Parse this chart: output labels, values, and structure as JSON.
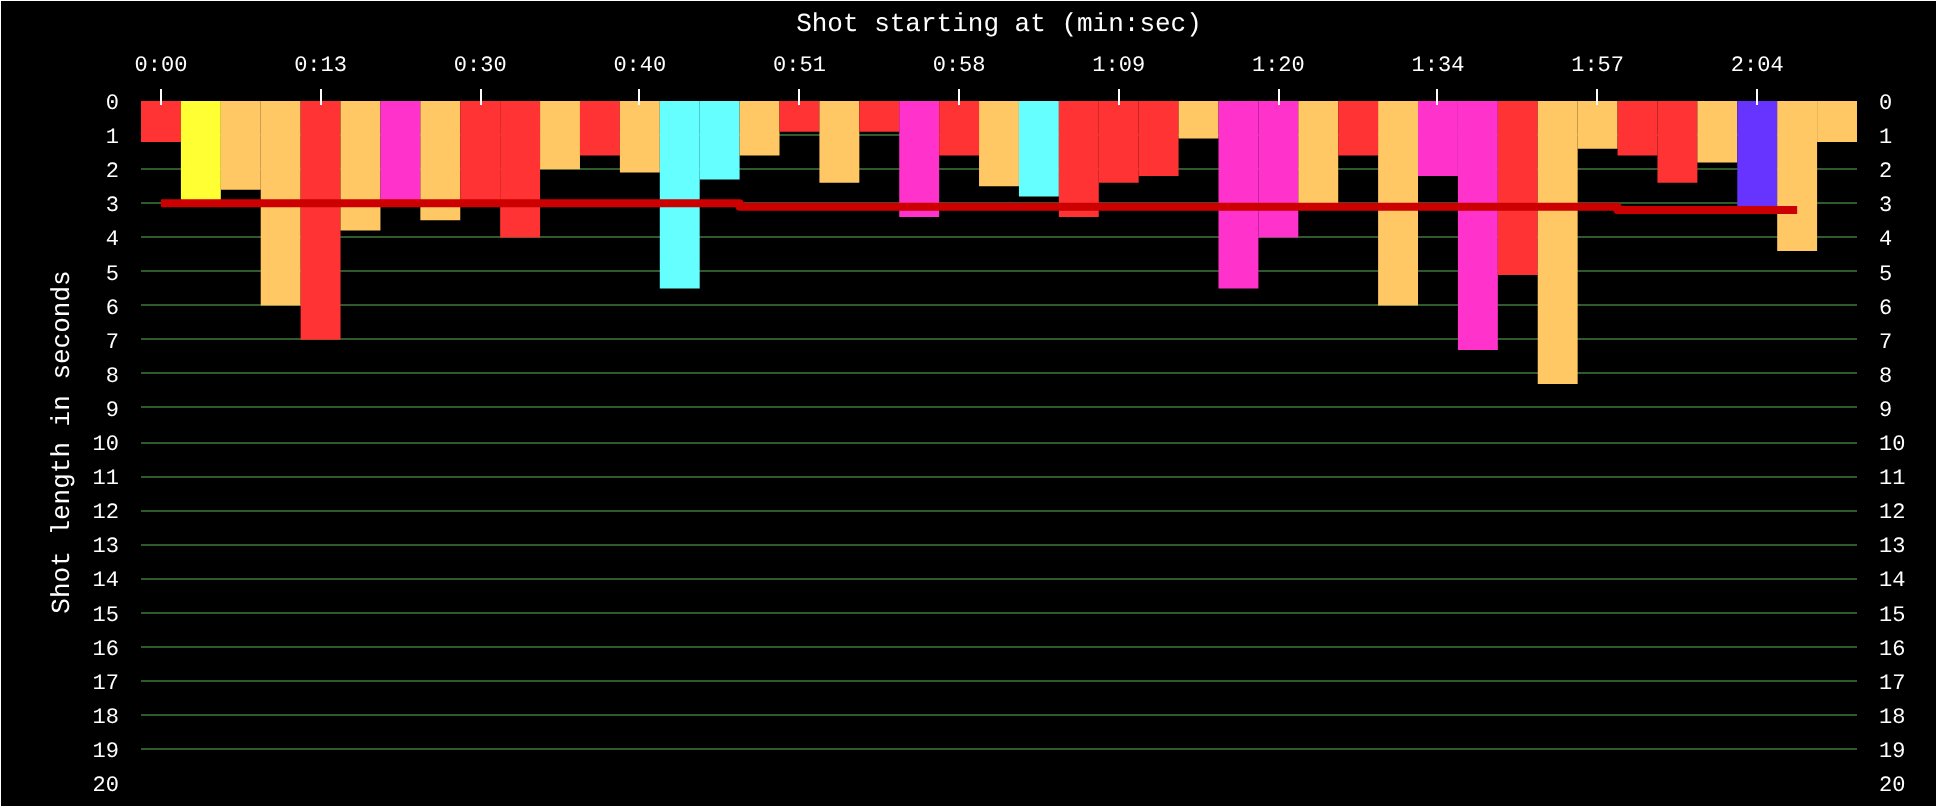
{
  "chart_data": {
    "type": "bar",
    "xlabel": "Shot starting at (min:sec)",
    "ylabel": "Shot length in seconds",
    "categories": [
      "0:00",
      null,
      null,
      null,
      "0:13",
      null,
      null,
      null,
      "0:30",
      null,
      null,
      null,
      "0:40",
      null,
      null,
      null,
      "0:51",
      null,
      null,
      null,
      "0:58",
      null,
      null,
      null,
      "1:09",
      null,
      null,
      null,
      "1:20",
      null,
      null,
      null,
      "1:34",
      null,
      null,
      null,
      "1:57",
      null,
      null,
      null,
      "2:04",
      null,
      null
    ],
    "series": [
      {
        "values": [
          1.2,
          2.9,
          2.6,
          6.0,
          7.0,
          3.8,
          3.0,
          3.5,
          3.0,
          4.0,
          2.0,
          1.6,
          2.1,
          5.5,
          2.3,
          1.6,
          0.9,
          2.4,
          0.9,
          3.4,
          1.6,
          2.5,
          2.8,
          3.4,
          2.4,
          2.2,
          1.1,
          5.5,
          4.0,
          3.0,
          1.6,
          6.0,
          2.2,
          7.3,
          5.1,
          8.3,
          1.4,
          1.6,
          2.4,
          1.8,
          3.1,
          4.4,
          1.2
        ],
        "colors": [
          "#ff3333",
          "#ffff33",
          "#ffc864",
          "#ffc864",
          "#ff3333",
          "#ffc864",
          "#ff33cc",
          "#ffc864",
          "#ff3333",
          "#ff3333",
          "#ffc864",
          "#ff3333",
          "#ffc864",
          "#66ffff",
          "#66ffff",
          "#ffc864",
          "#ff3333",
          "#ffc864",
          "#ff3333",
          "#ff33cc",
          "#ff3333",
          "#ffc864",
          "#66ffff",
          "#ff3333",
          "#ff3333",
          "#ff3333",
          "#ffc864",
          "#ff33cc",
          "#ff33cc",
          "#ffc864",
          "#ff3333",
          "#ffc864",
          "#ff33cc",
          "#ff33cc",
          "#ff3333",
          "#ffc864",
          "#ffc864",
          "#ff3333",
          "#ff3333",
          "#ffc864",
          "#6633ff",
          "#ffc864",
          "#ffc864"
        ]
      },
      {
        "type": "step",
        "color": "#cc0000",
        "values": [
          3.0,
          3.0,
          3.0,
          3.0,
          3.0,
          3.0,
          3.0,
          3.0,
          3.0,
          3.0,
          3.0,
          3.0,
          3.0,
          3.0,
          3.0,
          3.1,
          3.1,
          3.1,
          3.1,
          3.1,
          3.1,
          3.1,
          3.1,
          3.1,
          3.1,
          3.1,
          3.1,
          3.1,
          3.1,
          3.1,
          3.1,
          3.1,
          3.1,
          3.1,
          3.1,
          3.1,
          3.1,
          3.2,
          3.2,
          3.2,
          3.2,
          3.2,
          null
        ]
      }
    ],
    "ylim": [
      20,
      0
    ],
    "yticks": [
      0,
      1,
      2,
      3,
      4,
      5,
      6,
      7,
      8,
      9,
      10,
      11,
      12,
      13,
      14,
      15,
      16,
      17,
      18,
      19,
      20
    ],
    "y2lim": [
      20,
      0
    ],
    "y2ticks": [
      0,
      1,
      2,
      3,
      4,
      5,
      6,
      7,
      8,
      9,
      10,
      11,
      12,
      13,
      14,
      15,
      16,
      17,
      18,
      19,
      20
    ],
    "grid": "y"
  }
}
